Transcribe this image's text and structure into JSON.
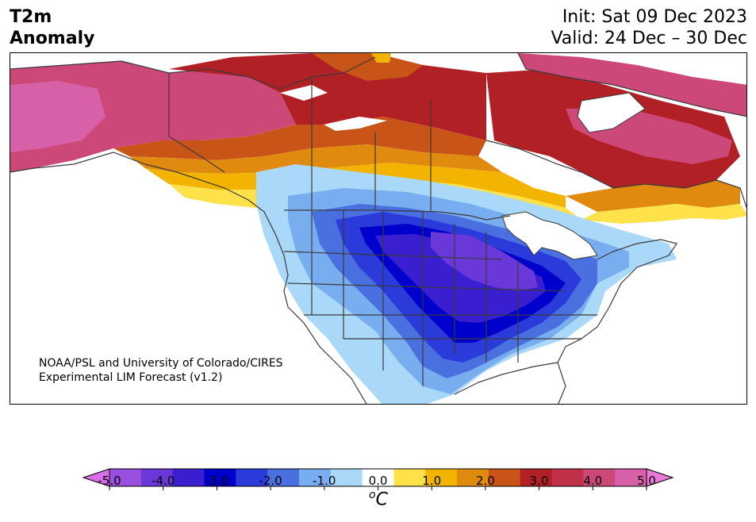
{
  "title": {
    "left_line1": "T2m",
    "left_line2": "Anomaly",
    "init": "Init: Sat 09 Dec 2023",
    "valid": "Valid: 24 Dec – 30 Dec"
  },
  "credit": {
    "line1": "NOAA/PSL and University of Colorado/CIRES",
    "line2": "Experimental LIM Forecast (v1.2)"
  },
  "colorbar": {
    "unit_base": "C",
    "unit_sup": "o",
    "tick_labels": [
      "-5.0",
      "-4.0",
      "-3.0",
      "-2.0",
      "-1.0",
      "0.0",
      "1.0",
      "2.0",
      "3.0",
      "4.0",
      "5.0"
    ],
    "colors": [
      "#d86fe6",
      "#9a4fde",
      "#6a38d8",
      "#3a1fd0",
      "#0000cc",
      "#2a3bd9",
      "#4a70e0",
      "#78aef0",
      "#aad8f8",
      "#ffffff",
      "#ffe14a",
      "#f2b400",
      "#e08a10",
      "#c85418",
      "#b02025",
      "#c03048",
      "#cc4878",
      "#d860a8",
      "#e878d4"
    ],
    "ticks": [
      -5,
      -4,
      -3,
      -2,
      -1,
      0,
      1,
      2,
      3,
      4,
      5
    ]
  },
  "map": {
    "region": "North America",
    "palette": {
      "land_outline": "#3a3a3a",
      "water": "#ffffff"
    }
  }
}
